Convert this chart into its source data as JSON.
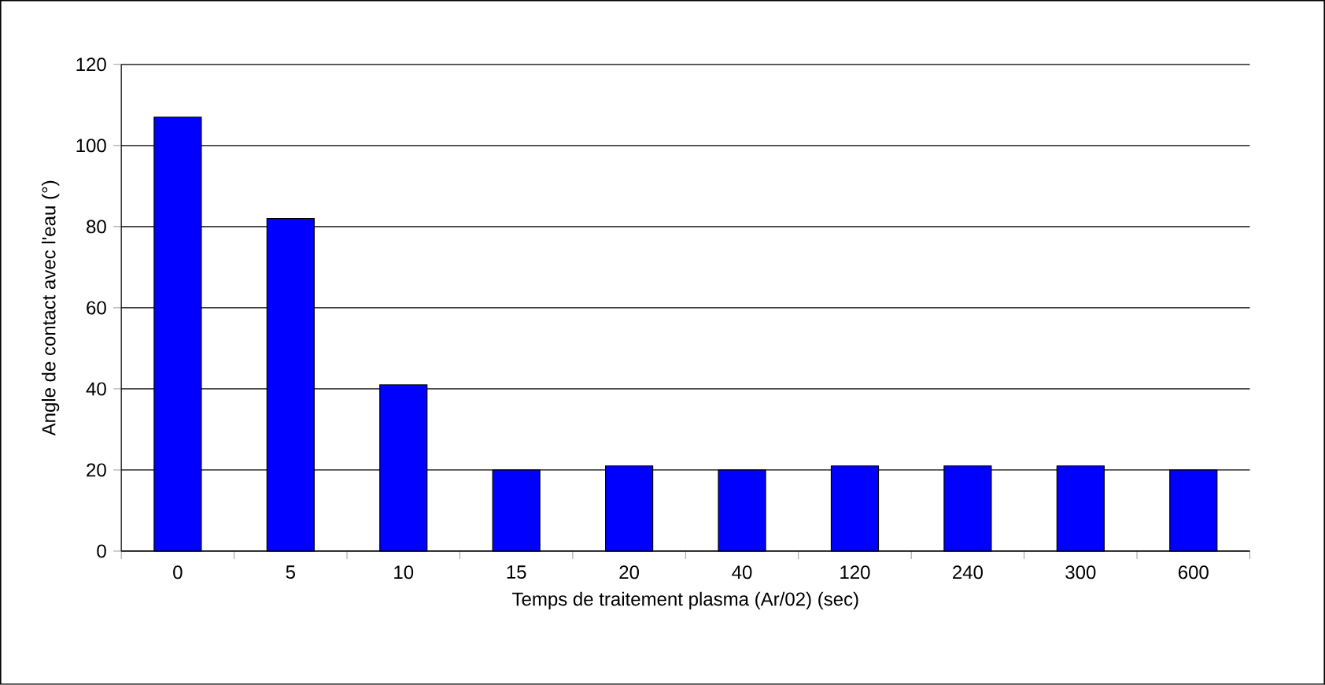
{
  "chart_data": {
    "type": "bar",
    "xlabel": "Temps de traitement plasma (Ar/02) (sec)",
    "ylabel": "Angle de contact avec l'eau (°)",
    "categories": [
      "0",
      "5",
      "10",
      "15",
      "20",
      "40",
      "120",
      "240",
      "300",
      "600"
    ],
    "values": [
      107,
      82,
      41,
      20,
      21,
      20,
      21,
      21,
      21,
      20
    ],
    "color": "#0000ff",
    "ylim": [
      0,
      120
    ],
    "yticks": [
      0,
      20,
      40,
      60,
      80,
      100,
      120
    ],
    "grid": "y"
  }
}
